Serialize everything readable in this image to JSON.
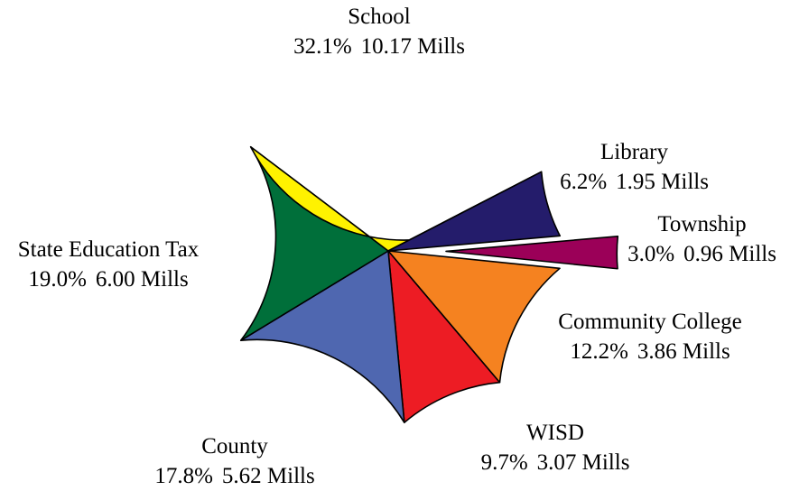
{
  "chart_data": {
    "type": "pie",
    "slices": [
      {
        "name": "Township",
        "percent_label": "3.0%",
        "mills_label": "0.96 Mills",
        "percent": 3.0,
        "mills": 0.96,
        "color": "#9B0058",
        "exploded": true
      },
      {
        "name": "Community College",
        "percent_label": "12.2%",
        "mills_label": "3.86 Mills",
        "percent": 12.2,
        "mills": 3.86,
        "color": "#F58220",
        "exploded": false
      },
      {
        "name": "WISD",
        "percent_label": "9.7%",
        "mills_label": "3.07 Mills",
        "percent": 9.7,
        "mills": 3.07,
        "color": "#ED1C24",
        "exploded": false
      },
      {
        "name": "County",
        "percent_label": "17.8%",
        "mills_label": "5.62 Mills",
        "percent": 17.8,
        "mills": 5.62,
        "color": "#4F67B0",
        "exploded": false
      },
      {
        "name": "State Education Tax",
        "percent_label": "19.0%",
        "mills_label": "6.00 Mills",
        "percent": 19.0,
        "mills": 6.0,
        "color": "#006F3A",
        "exploded": false
      },
      {
        "name": "School",
        "percent_label": "32.1%",
        "mills_label": "10.17 Mills",
        "percent": 32.1,
        "mills": 10.17,
        "color": "#FFF200",
        "exploded": false
      },
      {
        "name": "Library",
        "percent_label": "6.2%",
        "mills_label": "1.95 Mills",
        "percent": 6.2,
        "mills": 1.95,
        "color": "#241C6B",
        "exploded": false
      }
    ]
  }
}
